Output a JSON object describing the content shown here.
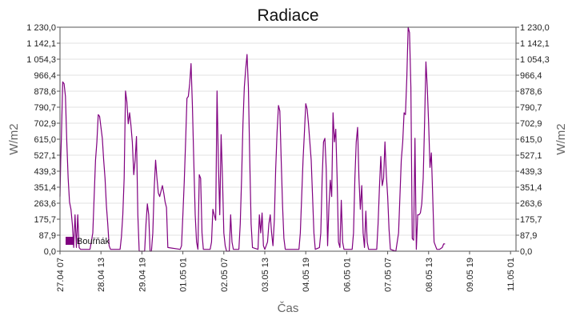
{
  "chart_data": {
    "type": "line",
    "title": "Radiace",
    "xlabel": "Čas",
    "ylabel_left": "W/m2",
    "ylabel_right": "W/m2",
    "ylim": [
      0,
      1230
    ],
    "y_ticks": [
      "0,0",
      "87,9",
      "175,7",
      "263,6",
      "351,4",
      "439,3",
      "527,1",
      "615,0",
      "702,9",
      "790,7",
      "878,6",
      "966,4",
      "1 054,3",
      "1 142,1",
      "1 230,0"
    ],
    "x_ticks": [
      "27.04 07",
      "28.04 13",
      "29.04 19",
      "01.05 01",
      "02.05 07",
      "03.05 13",
      "04.05 19",
      "06.05 01",
      "07.05 07",
      "08.05 13",
      "09.05 19",
      "11.05 01"
    ],
    "x_tick_hours": [
      0,
      30,
      60,
      90,
      120,
      150,
      180,
      210,
      240,
      270,
      300,
      330
    ],
    "xlim_hours": [
      0,
      334
    ],
    "grid": true,
    "legend_position": "bottom-left",
    "series": [
      {
        "name": "Bouřňák",
        "color": "#800080",
        "points": [
          [
            0,
            300
          ],
          [
            0.5,
            500
          ],
          [
            1,
            620
          ],
          [
            2,
            930
          ],
          [
            3,
            920
          ],
          [
            4,
            850
          ],
          [
            5,
            600
          ],
          [
            6,
            400
          ],
          [
            7,
            270
          ],
          [
            8,
            230
          ],
          [
            9,
            150
          ],
          [
            10,
            20
          ],
          [
            11,
            200
          ],
          [
            12,
            20
          ],
          [
            13,
            200
          ],
          [
            14,
            20
          ],
          [
            15,
            10
          ],
          [
            20,
            10
          ],
          [
            22,
            10
          ],
          [
            24,
            100
          ],
          [
            25,
            300
          ],
          [
            26,
            500
          ],
          [
            27,
            600
          ],
          [
            28,
            750
          ],
          [
            29,
            740
          ],
          [
            30,
            680
          ],
          [
            31,
            620
          ],
          [
            32,
            500
          ],
          [
            33,
            400
          ],
          [
            34,
            250
          ],
          [
            35,
            150
          ],
          [
            36,
            30
          ],
          [
            37,
            10
          ],
          [
            44,
            10
          ],
          [
            45,
            80
          ],
          [
            46,
            200
          ],
          [
            47,
            400
          ],
          [
            48,
            880
          ],
          [
            49,
            820
          ],
          [
            50,
            700
          ],
          [
            51,
            760
          ],
          [
            52,
            690
          ],
          [
            53,
            600
          ],
          [
            54,
            420
          ],
          [
            55,
            500
          ],
          [
            56,
            630
          ],
          [
            57,
            200
          ],
          [
            58,
            0
          ],
          [
            62,
            0
          ],
          [
            63,
            150
          ],
          [
            64,
            260
          ],
          [
            65,
            200
          ],
          [
            66,
            0
          ],
          [
            67,
            0
          ],
          [
            68,
            100
          ],
          [
            69,
            350
          ],
          [
            70,
            500
          ],
          [
            71,
            400
          ],
          [
            72,
            320
          ],
          [
            73,
            300
          ],
          [
            74,
            330
          ],
          [
            75,
            360
          ],
          [
            76,
            320
          ],
          [
            77,
            270
          ],
          [
            78,
            240
          ],
          [
            79,
            20
          ],
          [
            88,
            10
          ],
          [
            89,
            30
          ],
          [
            90,
            200
          ],
          [
            91,
            380
          ],
          [
            92,
            600
          ],
          [
            93,
            840
          ],
          [
            94,
            850
          ],
          [
            95,
            920
          ],
          [
            96,
            1030
          ],
          [
            97,
            800
          ],
          [
            98,
            500
          ],
          [
            99,
            200
          ],
          [
            100,
            50
          ],
          [
            101,
            10
          ],
          [
            102,
            420
          ],
          [
            103,
            400
          ],
          [
            104,
            100
          ],
          [
            105,
            10
          ],
          [
            110,
            10
          ],
          [
            111,
            50
          ],
          [
            112,
            230
          ],
          [
            113,
            200
          ],
          [
            114,
            170
          ],
          [
            115,
            880
          ],
          [
            116,
            480
          ],
          [
            117,
            200
          ],
          [
            118,
            640
          ],
          [
            119,
            400
          ],
          [
            120,
            100
          ],
          [
            121,
            30
          ],
          [
            122,
            0
          ],
          [
            124,
            0
          ],
          [
            125,
            200
          ],
          [
            126,
            50
          ],
          [
            127,
            10
          ],
          [
            131,
            10
          ],
          [
            132,
            150
          ],
          [
            133,
            400
          ],
          [
            134,
            700
          ],
          [
            135,
            900
          ],
          [
            136,
            1000
          ],
          [
            137,
            1080
          ],
          [
            138,
            900
          ],
          [
            139,
            500
          ],
          [
            140,
            150
          ],
          [
            141,
            20
          ],
          [
            145,
            10
          ],
          [
            146,
            200
          ],
          [
            147,
            100
          ],
          [
            148,
            210
          ],
          [
            149,
            30
          ],
          [
            150,
            10
          ],
          [
            152,
            50
          ],
          [
            153,
            150
          ],
          [
            154,
            200
          ],
          [
            155,
            100
          ],
          [
            156,
            30
          ],
          [
            157,
            170
          ],
          [
            158,
            450
          ],
          [
            159,
            650
          ],
          [
            160,
            800
          ],
          [
            161,
            770
          ],
          [
            162,
            500
          ],
          [
            163,
            250
          ],
          [
            164,
            70
          ],
          [
            165,
            10
          ],
          [
            175,
            10
          ],
          [
            176,
            100
          ],
          [
            177,
            300
          ],
          [
            178,
            500
          ],
          [
            179,
            650
          ],
          [
            180,
            810
          ],
          [
            181,
            780
          ],
          [
            182,
            700
          ],
          [
            183,
            600
          ],
          [
            184,
            500
          ],
          [
            185,
            300
          ],
          [
            186,
            100
          ],
          [
            187,
            10
          ],
          [
            190,
            20
          ],
          [
            191,
            100
          ],
          [
            192,
            400
          ],
          [
            193,
            600
          ],
          [
            194,
            620
          ],
          [
            195,
            450
          ],
          [
            196,
            30
          ],
          [
            197,
            250
          ],
          [
            198,
            390
          ],
          [
            199,
            300
          ],
          [
            200,
            760
          ],
          [
            201,
            600
          ],
          [
            202,
            670
          ],
          [
            203,
            400
          ],
          [
            204,
            50
          ],
          [
            205,
            20
          ],
          [
            206,
            280
          ],
          [
            207,
            50
          ],
          [
            208,
            10
          ],
          [
            214,
            10
          ],
          [
            215,
            100
          ],
          [
            216,
            400
          ],
          [
            217,
            600
          ],
          [
            218,
            680
          ],
          [
            219,
            400
          ],
          [
            220,
            230
          ],
          [
            221,
            360
          ],
          [
            222,
            100
          ],
          [
            223,
            20
          ],
          [
            224,
            220
          ],
          [
            225,
            50
          ],
          [
            226,
            10
          ],
          [
            232,
            10
          ],
          [
            233,
            150
          ],
          [
            234,
            350
          ],
          [
            235,
            520
          ],
          [
            236,
            360
          ],
          [
            237,
            400
          ],
          [
            238,
            600
          ],
          [
            239,
            420
          ],
          [
            240,
            300
          ],
          [
            241,
            120
          ],
          [
            242,
            10
          ],
          [
            246,
            0
          ],
          [
            248,
            100
          ],
          [
            249,
            300
          ],
          [
            250,
            500
          ],
          [
            251,
            600
          ],
          [
            252,
            760
          ],
          [
            253,
            750
          ],
          [
            254,
            950
          ],
          [
            255,
            1230
          ],
          [
            256,
            1200
          ],
          [
            257,
            900
          ],
          [
            258,
            70
          ],
          [
            259,
            60
          ],
          [
            260,
            620
          ],
          [
            261,
            10
          ],
          [
            262,
            200
          ],
          [
            263,
            200
          ],
          [
            264,
            210
          ],
          [
            265,
            260
          ],
          [
            266,
            400
          ],
          [
            267,
            700
          ],
          [
            268,
            1040
          ],
          [
            269,
            900
          ],
          [
            270,
            700
          ],
          [
            271,
            460
          ],
          [
            272,
            540
          ],
          [
            273,
            300
          ],
          [
            274,
            50
          ],
          [
            276,
            10
          ],
          [
            278,
            10
          ],
          [
            280,
            20
          ],
          [
            281,
            40
          ],
          [
            282,
            40
          ]
        ]
      }
    ]
  }
}
